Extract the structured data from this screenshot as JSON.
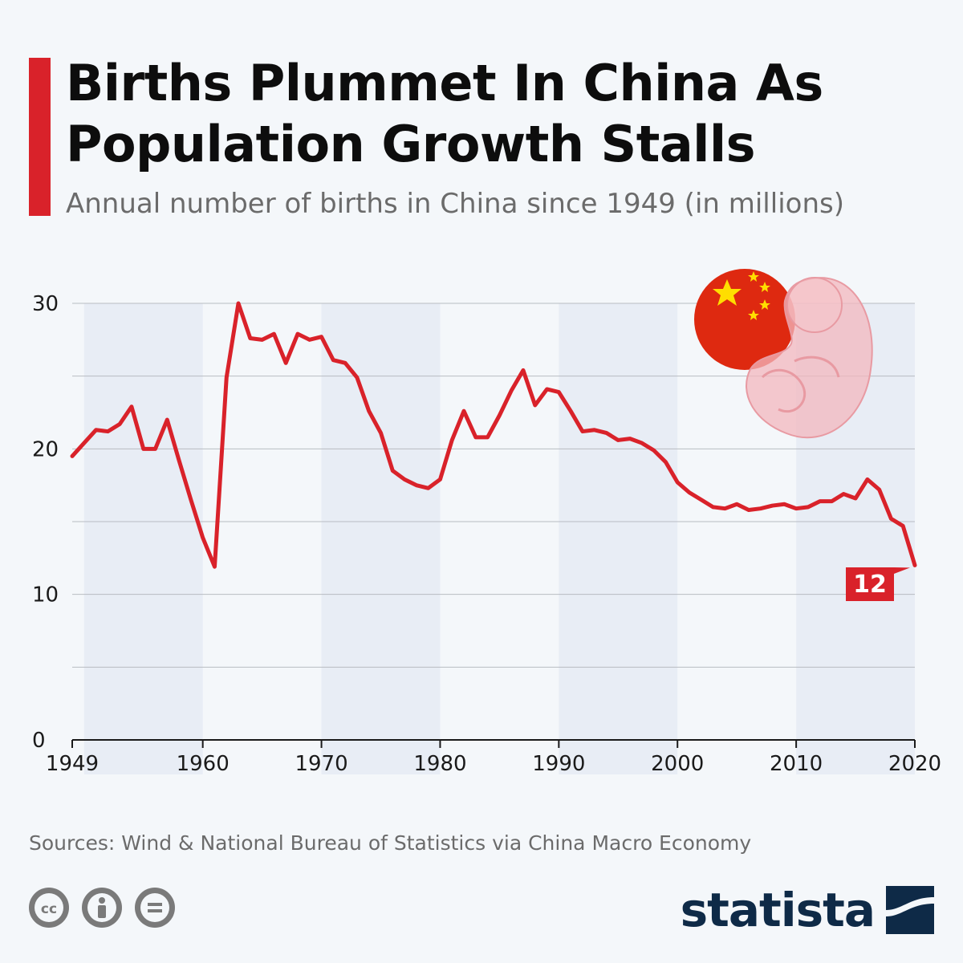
{
  "header": {
    "title": "Births Plummet In China As Population Growth Stalls",
    "subtitle": "Annual number of births in China since 1949 (in millions)"
  },
  "footer": {
    "source": "Sources: Wind & National Bureau of Statistics via China Macro Economy",
    "brand": "statista",
    "license_icons": [
      "cc-icon",
      "attribution-icon",
      "no-derivatives-icon"
    ]
  },
  "colors": {
    "accent": "#d9222a",
    "line": "#d9222a",
    "band": "#e8edf5",
    "brand": "#0e2a47",
    "flag_red": "#de2910",
    "flag_star": "#ffde00"
  },
  "chart_data": {
    "type": "line",
    "title": "Births Plummet In China As Population Growth Stalls",
    "subtitle": "Annual number of births in China since 1949 (in millions)",
    "xlabel": "",
    "ylabel": "",
    "xlim": [
      1949,
      2020
    ],
    "ylim": [
      0,
      30
    ],
    "yticks": [
      0,
      10,
      20,
      30
    ],
    "xticks": [
      1949,
      1960,
      1970,
      1980,
      1990,
      2000,
      2010,
      2020
    ],
    "grid": true,
    "legend": "none",
    "highlight_label": "12",
    "series": [
      {
        "x": [
          1949,
          1950,
          1951,
          1952,
          1953,
          1954,
          1955,
          1956,
          1957,
          1958,
          1959,
          1960,
          1961,
          1962,
          1963,
          1964,
          1965,
          1966,
          1967,
          1968,
          1969,
          1970,
          1971,
          1972,
          1973,
          1974,
          1975,
          1976,
          1977,
          1978,
          1979,
          1980,
          1981,
          1982,
          1983,
          1984,
          1985,
          1986,
          1987,
          1988,
          1989,
          1990,
          1991,
          1992,
          1993,
          1994,
          1995,
          1996,
          1997,
          1998,
          1999,
          2000,
          2001,
          2002,
          2003,
          2004,
          2005,
          2006,
          2007,
          2008,
          2009,
          2010,
          2011,
          2012,
          2013,
          2014,
          2015,
          2016,
          2017,
          2018,
          2019,
          2020
        ],
        "values": [
          19.5,
          20.4,
          21.3,
          21.2,
          21.7,
          22.9,
          20.0,
          20.0,
          22.0,
          19.2,
          16.5,
          13.9,
          11.9,
          24.9,
          30.0,
          27.6,
          27.5,
          27.9,
          25.9,
          27.9,
          27.5,
          27.7,
          26.1,
          25.9,
          24.9,
          22.6,
          21.1,
          18.5,
          17.9,
          17.5,
          17.3,
          17.9,
          20.6,
          22.6,
          20.8,
          20.8,
          22.3,
          24.0,
          25.4,
          23.0,
          24.1,
          23.9,
          22.6,
          21.2,
          21.3,
          21.1,
          20.6,
          20.7,
          20.4,
          19.9,
          19.1,
          17.7,
          17.0,
          16.5,
          16.0,
          15.9,
          16.2,
          15.8,
          15.9,
          16.1,
          16.2,
          15.9,
          16.0,
          16.4,
          16.4,
          16.9,
          16.6,
          17.9,
          17.2,
          15.2,
          14.7,
          12.0
        ]
      }
    ]
  }
}
